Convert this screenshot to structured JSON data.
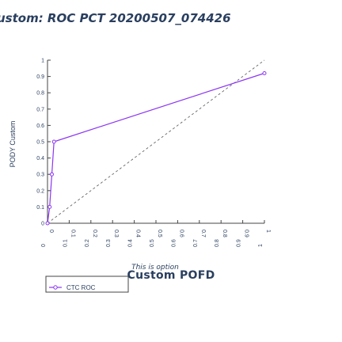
{
  "colors": {
    "series": "#8b36f2",
    "diagonal": "#555555",
    "text": "#2a3f5f",
    "frame": "#444444"
  },
  "chart_data": {
    "type": "line",
    "title": "ustom: ROC PCT 20200507_074426",
    "xlabel": "",
    "ylabel": "PODY Custom",
    "xlim": [
      0,
      1
    ],
    "ylim": [
      0,
      1
    ],
    "x_tick_labels": [
      "0",
      "0.1",
      "0.2",
      "0.3",
      "0.4",
      "0.5",
      "0.6",
      "0.7",
      "0.8",
      "0.9",
      "1"
    ],
    "x_tick_labels_secondary": [
      "0",
      "0.1",
      "0.2",
      "0.3",
      "0.4",
      "0.5",
      "0.6",
      "0.7",
      "0.8",
      "0.9",
      "1"
    ],
    "y_tick_labels": [
      "0",
      "0.1",
      "0.2",
      "0.3",
      "0.4",
      "0.5",
      "0.6",
      "0.7",
      "0.8",
      "0.9",
      "1"
    ],
    "grid": false,
    "legend_placement": "bottom-left",
    "series": [
      {
        "name": "CTC ROC",
        "x": [
          0,
          0.01,
          0.02,
          0.03,
          1
        ],
        "y": [
          0,
          0.1,
          0.3,
          0.5,
          0.92
        ]
      }
    ],
    "diagonal": {
      "x": [
        0,
        1
      ],
      "y": [
        0,
        1
      ]
    },
    "annotations": {
      "main": "Custom POFD",
      "overlay": "This is option"
    }
  }
}
